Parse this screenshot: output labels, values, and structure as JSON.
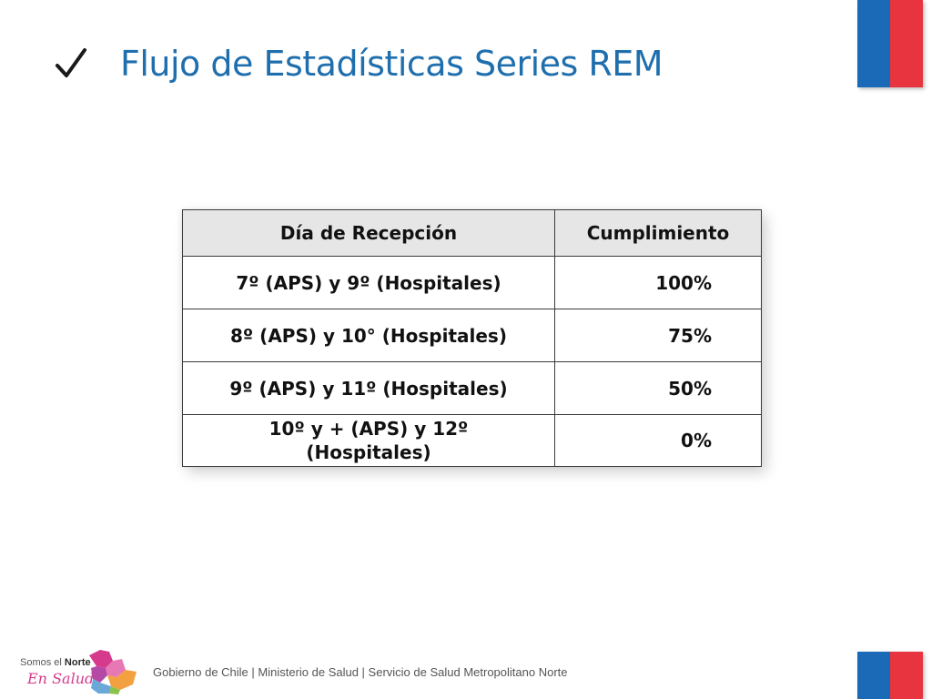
{
  "header": {
    "title": "Flujo de Estadísticas Series REM",
    "bullet_icon": "check-icon",
    "title_color": "#1f6fae"
  },
  "table": {
    "columns": [
      "Día de Recepción",
      "Cumplimiento"
    ],
    "rows": [
      {
        "day": "7º (APS) y 9º (Hospitales)",
        "compliance": "100%"
      },
      {
        "day": "8º (APS) y 10° (Hospitales)",
        "compliance": "75%"
      },
      {
        "day": "9º (APS) y 11º (Hospitales)",
        "compliance": "50%"
      },
      {
        "day_line1": "10º y + (APS) y 12º",
        "day_line2": "(Hospitales)",
        "compliance": "0%"
      }
    ],
    "header_bg": "#e6e6e6"
  },
  "footer": {
    "logo_line1_a": "Somos el ",
    "logo_line1_b": "Norte",
    "logo_line2": "En Salud",
    "text": "Gobierno de Chile | Ministerio de Salud | Servicio de Salud Metropolitano Norte"
  },
  "colors": {
    "flag_blue": "#1a6ab8",
    "flag_red": "#e8343e",
    "logo_pink": "#d63a8c"
  }
}
